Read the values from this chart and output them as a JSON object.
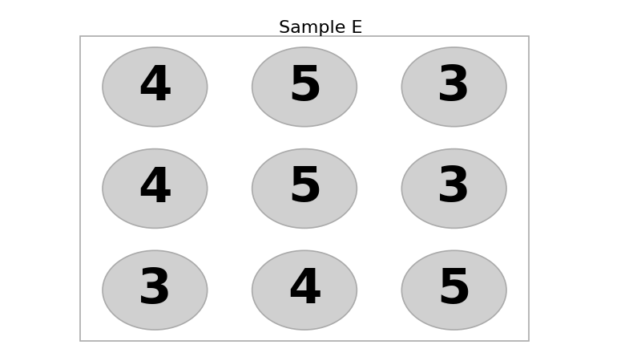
{
  "title": "Sample E",
  "title_fontsize": 16,
  "grid_values": [
    [
      4,
      5,
      3
    ],
    [
      4,
      5,
      3
    ],
    [
      3,
      4,
      5
    ]
  ],
  "ellipse_color": "#d0d0d0",
  "ellipse_edge_color": "#aaaaaa",
  "text_color": "#000000",
  "number_fontsize": 44,
  "box_edge_color": "#aaaaaa",
  "background_color": "#ffffff",
  "fig_width": 8.0,
  "fig_height": 4.5
}
